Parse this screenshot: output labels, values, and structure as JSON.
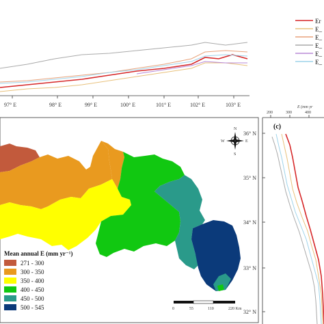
{
  "top_panel": {
    "x_ticks": [
      "97° E",
      "98° E",
      "99° E",
      "100° E",
      "101° E",
      "102° E",
      "103° E"
    ],
    "legend": [
      {
        "label": "Er",
        "color": "#d62728"
      },
      {
        "label": "E_",
        "color": "#e8c07a"
      },
      {
        "label": "E_",
        "color": "#e8a27a"
      },
      {
        "label": "E_",
        "color": "#a9a9a9"
      },
      {
        "label": "E_",
        "color": "#b889d6"
      },
      {
        "label": "E_",
        "color": "#9ed3ea"
      }
    ]
  },
  "map": {
    "lat_ticks": [
      "36° N",
      "35° N",
      "34° N",
      "33° N",
      "32° N"
    ],
    "legend_title": "Mean annual E (mm yr⁻¹)",
    "legend_items": [
      {
        "label": "271 - 300",
        "color": "#c25a3c"
      },
      {
        "label": "300 - 350",
        "color": "#e99a1f"
      },
      {
        "label": "350 - 400",
        "color": "#ffff00"
      },
      {
        "label": "400 - 450",
        "color": "#11c811"
      },
      {
        "label": "450 - 500",
        "color": "#2a9a8a"
      },
      {
        "label": "500 - 545",
        "color": "#0b3a7a"
      }
    ],
    "scale_labels": [
      "0",
      "55",
      "110",
      "220 Km"
    ],
    "compass": {
      "n": "N",
      "s": "S",
      "e": "E",
      "w": "W"
    }
  },
  "right_panel": {
    "panel_label": "(c)",
    "top_ticks": [
      "200",
      "300",
      "400"
    ],
    "axis_label_prefix": "E (mm yr",
    "lines": [
      {
        "color": "#d62728"
      },
      {
        "color": "#e8c07a"
      },
      {
        "color": "#a9a9a9"
      },
      {
        "color": "#9ed3ea"
      }
    ]
  }
}
